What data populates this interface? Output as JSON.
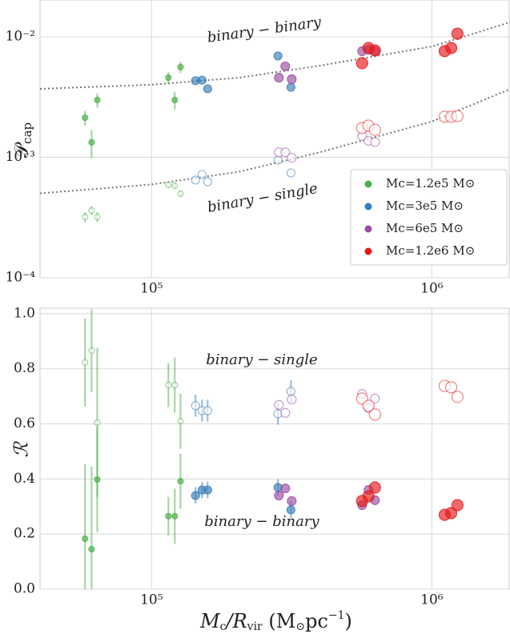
{
  "chart_data": [
    {
      "type": "scatter",
      "xscale": "log",
      "yscale": "log",
      "xlim": [
        40000,
        1900000
      ],
      "xticks": [
        {
          "value": 100000,
          "label": "10⁵"
        },
        {
          "value": 1000000,
          "label": "10⁶"
        }
      ],
      "ylim": [
        0.0001,
        0.0202
      ],
      "yticks": [
        {
          "value": 0.0001,
          "label": "10⁻⁴"
        },
        {
          "value": 0.001,
          "label": "10⁻³"
        },
        {
          "value": 0.01,
          "label": "10⁻²"
        }
      ],
      "grid": true,
      "legend": "lower right",
      "ylabel": "𝒫",
      "ylabel_subscript": "cap",
      "annotations": [
        "binary − binary",
        "binary − single"
      ],
      "curves": [
        {
          "color": "#777777",
          "x": [
            40000,
            100000,
            206000,
            398000,
            1000000,
            1900000
          ],
          "values": [
            0.0037,
            0.004,
            0.00458,
            0.00576,
            0.0083,
            0.0132
          ]
        },
        {
          "color": "#777777",
          "x": [
            40000,
            100000,
            206000,
            398000,
            1000000,
            1900000
          ],
          "values": [
            0.000502,
            0.000595,
            0.00076,
            0.0011,
            0.00198,
            0.00368
          ]
        }
      ],
      "series": [
        {
          "name": "Mc=1.2e5 M⊙",
          "color": "#4daf4a",
          "x": [
            57900,
            61100,
            64000,
            114800,
            121000,
            126800
          ],
          "values": [
            0.00213,
            0.00133,
            0.00299,
            0.00458,
            0.00299,
            0.0056
          ],
          "errors": [
            0.0003,
            0.00035,
            0.0004,
            0.0005,
            0.0005,
            0.0006
          ],
          "values_single": [
            0.00032,
            0.000361,
            0.00032,
            0.00059,
            0.00058,
            0.000499
          ],
          "errors_single": [
            3e-05,
            3e-05,
            3e-05,
            3e-05,
            3e-05,
            3e-05
          ]
        },
        {
          "name": "Mc=3e5 M⊙",
          "color": "#377eb8",
          "x": [
            143500,
            151400,
            158500,
            282500,
            314200
          ],
          "values": [
            0.00432,
            0.00437,
            0.0037,
            0.00693,
            0.00381
          ],
          "values_single": [
            0.000647,
            0.00072,
            0.000627,
            0.000948,
            0.000741
          ]
        },
        {
          "name": "Mc=6e5 M⊙",
          "color": "#984ea3",
          "x": [
            284600,
            299900,
            316200,
            563900,
            594200,
            626500
          ],
          "values": [
            0.00458,
            0.00568,
            0.00445,
            0.0076,
            0.00783,
            0.0076
          ],
          "values_single": [
            0.0011,
            0.0011,
            0.000993,
            0.0015,
            0.00137,
            0.00134
          ]
        },
        {
          "name": "Mc=1.2e6 M⊙",
          "color": "#e41a1c",
          "x": [
            563900,
            594200,
            626500,
            1111000,
            1172000,
            1234000
          ],
          "values": [
            0.00604,
            0.00807,
            0.00771,
            0.0076,
            0.00807,
            0.0106
          ],
          "values_single": [
            0.00175,
            0.00183,
            0.00169,
            0.00217,
            0.00217,
            0.0022
          ]
        }
      ]
    },
    {
      "type": "scatter",
      "xscale": "log",
      "yscale": "linear",
      "xlim": [
        40000,
        1900000
      ],
      "xticks": [
        {
          "value": 100000,
          "label": "10⁵"
        },
        {
          "value": 1000000,
          "label": "10⁶"
        }
      ],
      "ylim": [
        0,
        1.02
      ],
      "yticks": [
        {
          "value": 0,
          "label": "0.0"
        },
        0.2,
        0.4,
        0.6,
        0.8,
        {
          "value": 1,
          "label": "1.0"
        }
      ],
      "grid": true,
      "ylabel": "ℛ",
      "xlabel": [
        "M",
        "c",
        "/R",
        "vir",
        " (M",
        "⊙",
        "pc",
        "−1",
        ")"
      ],
      "annotations": [
        "binary − single",
        "binary − binary"
      ],
      "series": [
        {
          "color": "#4daf4a",
          "x": [
            57900,
            61100,
            64000,
            114800,
            121000,
            126800
          ],
          "values": [
            0.183,
            0.145,
            0.398,
            0.265,
            0.265,
            0.392
          ],
          "errors": [
            0.27,
            0.3,
            0.19,
            0.07,
            0.1,
            0.1
          ],
          "values_single": [
            0.823,
            0.866,
            0.605,
            0.741,
            0.741,
            0.61
          ],
          "errors_single": [
            0.16,
            0.15,
            0.27,
            0.08,
            0.1,
            0.1
          ]
        },
        {
          "color": "#377eb8",
          "x": [
            143500,
            151400,
            158500,
            282500,
            314200
          ],
          "values": [
            0.34,
            0.36,
            0.36,
            0.369,
            0.288
          ],
          "errors": [
            0.03,
            0.03,
            0.03,
            0.03,
            0.03
          ],
          "values_single": [
            0.666,
            0.648,
            0.648,
            0.637,
            0.718
          ],
          "errors_single": [
            0.04,
            0.04,
            0.04,
            0.04,
            0.04
          ]
        },
        {
          "color": "#984ea3",
          "x": [
            284600,
            299900,
            316200,
            563900,
            594200,
            626500
          ],
          "values": [
            0.34,
            0.366,
            0.32,
            0.305,
            0.36,
            0.323
          ],
          "values_single": [
            0.669,
            0.64,
            0.689,
            0.709,
            0.657,
            0.692
          ]
        },
        {
          "color": "#e41a1c",
          "x": [
            563900,
            594200,
            626500,
            1111000,
            1172000,
            1234000
          ],
          "values": [
            0.32,
            0.337,
            0.369,
            0.27,
            0.276,
            0.305
          ],
          "values_single": [
            0.692,
            0.666,
            0.634,
            0.738,
            0.733,
            0.698
          ]
        }
      ]
    }
  ]
}
